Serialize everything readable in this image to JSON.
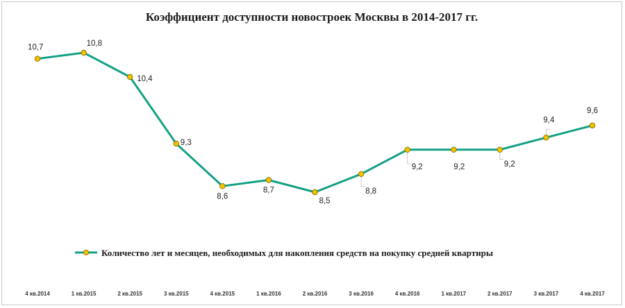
{
  "chart_data": {
    "type": "line",
    "title": "Коэффициент доступности новостроек Москвы в 2014-2017 гг.",
    "categories": [
      "4 кв.2014",
      "1 кв.2015",
      "2 кв.2015",
      "3 кв.2015",
      "4 кв.2015",
      "1 кв.2016",
      "2 кв.2016",
      "3 кв.2016",
      "4 кв.2016",
      "1 кв.2017",
      "2 кв.2017",
      "3 кв.2017",
      "4 кв.2017"
    ],
    "series": [
      {
        "name": "Количество лет и месяцев, необходимых для накопления средств на покупку средней квартиры",
        "values": [
          10.7,
          10.8,
          10.4,
          9.3,
          8.6,
          8.7,
          8.5,
          8.8,
          9.2,
          9.2,
          9.2,
          9.4,
          9.6
        ],
        "labels": [
          "10,7",
          "10,8",
          "10,4",
          "9,3",
          "8,6",
          "8,7",
          "8,5",
          "8,8",
          "9,2",
          "9,2",
          "9,2",
          "9,4",
          "9,6"
        ],
        "line_color": "#12a085",
        "marker_fill": "#f2c200"
      }
    ],
    "xlabel": "",
    "ylabel": "",
    "grid": false,
    "legend_position": "bottom"
  }
}
